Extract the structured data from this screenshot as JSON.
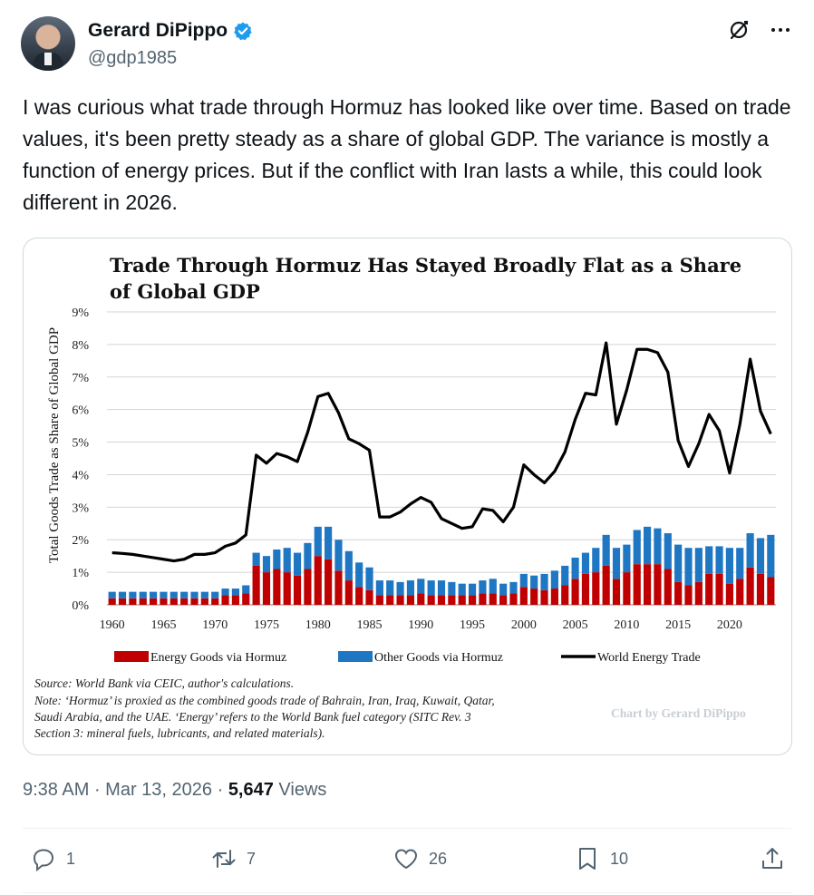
{
  "author": {
    "display_name": "Gerard DiPippo",
    "handle": "@gdp1985",
    "verified": true,
    "avatar_icon": "profile-photo"
  },
  "tweet": {
    "text": "I was curious what trade through Hormuz has looked like over time. Based on trade values, it's been pretty steady as a share of global GDP. The variance is mostly a function of energy prices. But if the conflict with Iran lasts a while, this could look different in 2026."
  },
  "meta": {
    "time": "9:38 AM",
    "separator": " · ",
    "date": "Mar 13, 2026",
    "views_count": "5,647",
    "views_label": " Views"
  },
  "actions": {
    "replies": "1",
    "reposts": "7",
    "likes": "26",
    "bookmarks": "10"
  },
  "colors": {
    "energy": "#c00000",
    "other": "#1f77c4",
    "world": "#000000",
    "verified": "#1d9bf0",
    "muted": "#536471"
  },
  "chart_data": {
    "type": "bar",
    "title": "Trade Through Hormuz Has Stayed Broadly Flat as a Share of Global GDP",
    "ylabel": "Total Goods Trade as Share of Global GDP",
    "ylim": [
      0,
      9
    ],
    "yticks": [
      "0%",
      "1%",
      "2%",
      "3%",
      "4%",
      "5%",
      "6%",
      "7%",
      "8%",
      "9%"
    ],
    "xticks": [
      "1960",
      "1965",
      "1970",
      "1975",
      "1980",
      "1985",
      "1990",
      "1995",
      "2000",
      "2005",
      "2010",
      "2015",
      "2020"
    ],
    "grid": "horizontal",
    "legend": "bottom",
    "x": [
      1960,
      1961,
      1962,
      1963,
      1964,
      1965,
      1966,
      1967,
      1968,
      1969,
      1970,
      1971,
      1972,
      1973,
      1974,
      1975,
      1976,
      1977,
      1978,
      1979,
      1980,
      1981,
      1982,
      1983,
      1984,
      1985,
      1986,
      1987,
      1988,
      1989,
      1990,
      1991,
      1992,
      1993,
      1994,
      1995,
      1996,
      1997,
      1998,
      1999,
      2000,
      2001,
      2002,
      2003,
      2004,
      2005,
      2006,
      2007,
      2008,
      2009,
      2010,
      2011,
      2012,
      2013,
      2014,
      2015,
      2016,
      2017,
      2018,
      2019,
      2020,
      2021,
      2022,
      2023,
      2024
    ],
    "series": [
      {
        "name": "Energy Goods via Hormuz",
        "stacked": true,
        "values": [
          0.2,
          0.2,
          0.2,
          0.2,
          0.2,
          0.2,
          0.2,
          0.2,
          0.2,
          0.2,
          0.2,
          0.3,
          0.3,
          0.35,
          1.2,
          1.0,
          1.1,
          1.0,
          0.9,
          1.1,
          1.5,
          1.4,
          1.05,
          0.75,
          0.55,
          0.45,
          0.3,
          0.3,
          0.3,
          0.3,
          0.35,
          0.3,
          0.3,
          0.3,
          0.3,
          0.3,
          0.35,
          0.35,
          0.3,
          0.35,
          0.55,
          0.5,
          0.45,
          0.5,
          0.6,
          0.8,
          0.95,
          1.0,
          1.2,
          0.8,
          1.0,
          1.25,
          1.25,
          1.25,
          1.1,
          0.7,
          0.6,
          0.7,
          0.95,
          0.95,
          0.65,
          0.8,
          1.15,
          0.95,
          0.85
        ]
      },
      {
        "name": "Other Goods via Hormuz",
        "stacked": true,
        "values": [
          0.2,
          0.2,
          0.2,
          0.2,
          0.2,
          0.2,
          0.2,
          0.2,
          0.2,
          0.2,
          0.2,
          0.2,
          0.2,
          0.25,
          0.4,
          0.5,
          0.6,
          0.75,
          0.7,
          0.8,
          0.9,
          1.0,
          0.95,
          0.9,
          0.75,
          0.7,
          0.45,
          0.45,
          0.4,
          0.45,
          0.45,
          0.45,
          0.45,
          0.4,
          0.35,
          0.35,
          0.4,
          0.45,
          0.35,
          0.35,
          0.4,
          0.4,
          0.5,
          0.55,
          0.6,
          0.65,
          0.65,
          0.75,
          0.95,
          0.95,
          0.85,
          1.05,
          1.15,
          1.1,
          1.1,
          1.15,
          1.15,
          1.05,
          0.85,
          0.85,
          1.1,
          0.95,
          1.05,
          1.1,
          1.3
        ]
      },
      {
        "name": "World Energy Trade",
        "type": "line",
        "values": [
          1.6,
          1.58,
          1.55,
          1.5,
          1.45,
          1.4,
          1.35,
          1.4,
          1.55,
          1.55,
          1.6,
          1.8,
          1.9,
          2.15,
          4.6,
          4.35,
          4.65,
          4.55,
          4.4,
          5.3,
          6.4,
          6.5,
          5.9,
          5.1,
          4.95,
          4.75,
          2.7,
          2.7,
          2.85,
          3.1,
          3.3,
          3.15,
          2.65,
          2.5,
          2.35,
          2.4,
          2.95,
          2.9,
          2.55,
          3.0,
          4.3,
          4.0,
          3.75,
          4.1,
          4.7,
          5.7,
          6.5,
          6.45,
          8.05,
          5.55,
          6.6,
          7.85,
          7.85,
          7.75,
          7.15,
          5.05,
          4.25,
          4.95,
          5.85,
          5.35,
          4.05,
          5.55,
          7.55,
          5.95,
          5.25
        ]
      }
    ],
    "source": "Source: World Bank via CEIC, author's calculations.",
    "note_lines": [
      "Note: ‘Hormuz’ is proxied as the combined goods trade of Bahrain, Iran, Iraq, Kuwait, Qatar,",
      "Saudi Arabia, and the UAE. ‘Energy’ refers to the World Bank fuel category (SITC Rev. 3",
      "Section 3: mineral fuels, lubricants, and related materials)."
    ],
    "credit": "Chart by Gerard DiPippo"
  }
}
